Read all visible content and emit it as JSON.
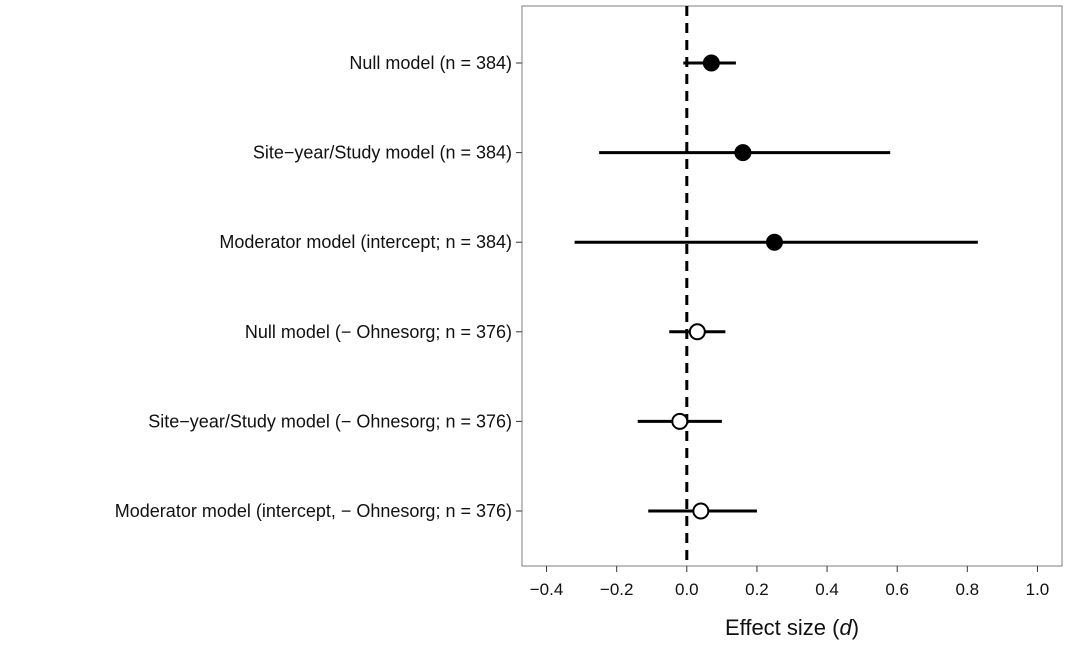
{
  "chart_data": {
    "type": "scatter",
    "subtype": "forest-plot",
    "title": "",
    "xlabel_prefix": "Effect size (",
    "xlabel_italic": "d",
    "xlabel_suffix": ")",
    "ylabel": "",
    "xlim": [
      -0.47,
      1.07
    ],
    "x_ticks": [
      -0.4,
      -0.2,
      0.0,
      0.2,
      0.4,
      0.6,
      0.8,
      1.0
    ],
    "x_tick_labels": [
      "-0.4",
      "-0.2",
      "0.0",
      "0.2",
      "0.4",
      "0.6",
      "0.8",
      "1.0"
    ],
    "reference_line": {
      "x": 0.0,
      "style": "dashed"
    },
    "grid": false,
    "rows": [
      {
        "label": "Null model (n = 384)",
        "estimate": 0.07,
        "lower": -0.01,
        "upper": 0.14,
        "marker": "filled"
      },
      {
        "label": "Site−year/Study model (n = 384)",
        "estimate": 0.16,
        "lower": -0.25,
        "upper": 0.58,
        "marker": "filled"
      },
      {
        "label": "Moderator model (intercept; n = 384)",
        "estimate": 0.25,
        "lower": -0.32,
        "upper": 0.83,
        "marker": "filled"
      },
      {
        "label": "Null model (− Ohnesorg; n = 376)",
        "estimate": 0.03,
        "lower": -0.05,
        "upper": 0.11,
        "marker": "open"
      },
      {
        "label": "Site−year/Study model (− Ohnesorg; n = 376)",
        "estimate": -0.02,
        "lower": -0.14,
        "upper": 0.1,
        "marker": "open"
      },
      {
        "label": "Moderator model (intercept, − Ohnesorg; n = 376)",
        "estimate": 0.04,
        "lower": -0.11,
        "upper": 0.2,
        "marker": "open"
      }
    ]
  },
  "colors": {
    "marker_fill_filled": "#000000",
    "marker_fill_open": "#ffffff",
    "line": "#000000",
    "panel_border": "#7f7f7f"
  }
}
